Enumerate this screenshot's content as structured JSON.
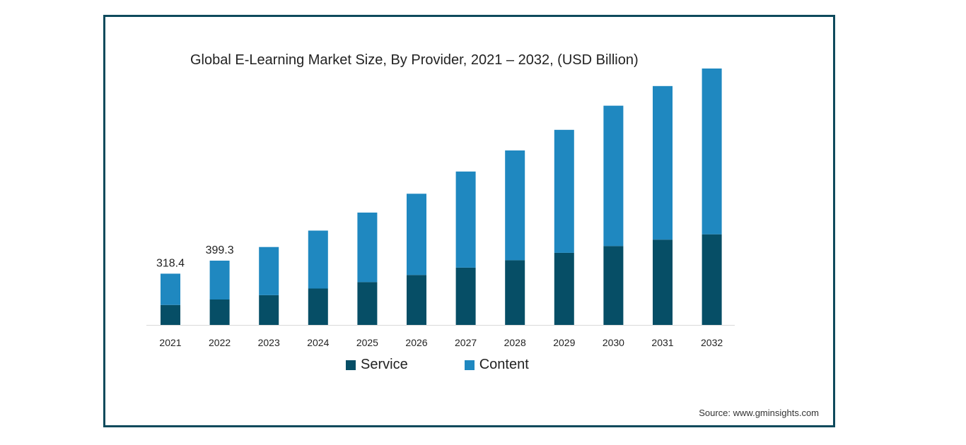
{
  "source": "Source: www.gminsights.com",
  "colors": {
    "frame": "#0e4a5c",
    "service": "#064e66",
    "content": "#1f88c0"
  },
  "chart_data": {
    "type": "bar",
    "stacked": true,
    "title": "Global E-Learning Market Size, By Provider, 2021 – 2032, (USD Billion)",
    "xlabel": "",
    "ylabel": "",
    "categories": [
      "2021",
      "2022",
      "2023",
      "2024",
      "2025",
      "2026",
      "2027",
      "2028",
      "2029",
      "2030",
      "2031",
      "2032"
    ],
    "series": [
      {
        "name": "Service",
        "color": "#064e66",
        "values": [
          124,
          158,
          185,
          226,
          266,
          310,
          356,
          402,
          448,
          490,
          530,
          563
        ]
      },
      {
        "name": "Content",
        "color": "#1f88c0",
        "values": [
          194.4,
          241.3,
          299,
          360,
          432,
          505,
          597,
          682,
          764,
          872,
          954,
          1030
        ]
      }
    ],
    "data_labels": [
      {
        "category": "2021",
        "text": "318.4"
      },
      {
        "category": "2022",
        "text": "399.3"
      }
    ],
    "ylim": [
      0,
      1650
    ],
    "grid": false,
    "legend": "bottom"
  }
}
